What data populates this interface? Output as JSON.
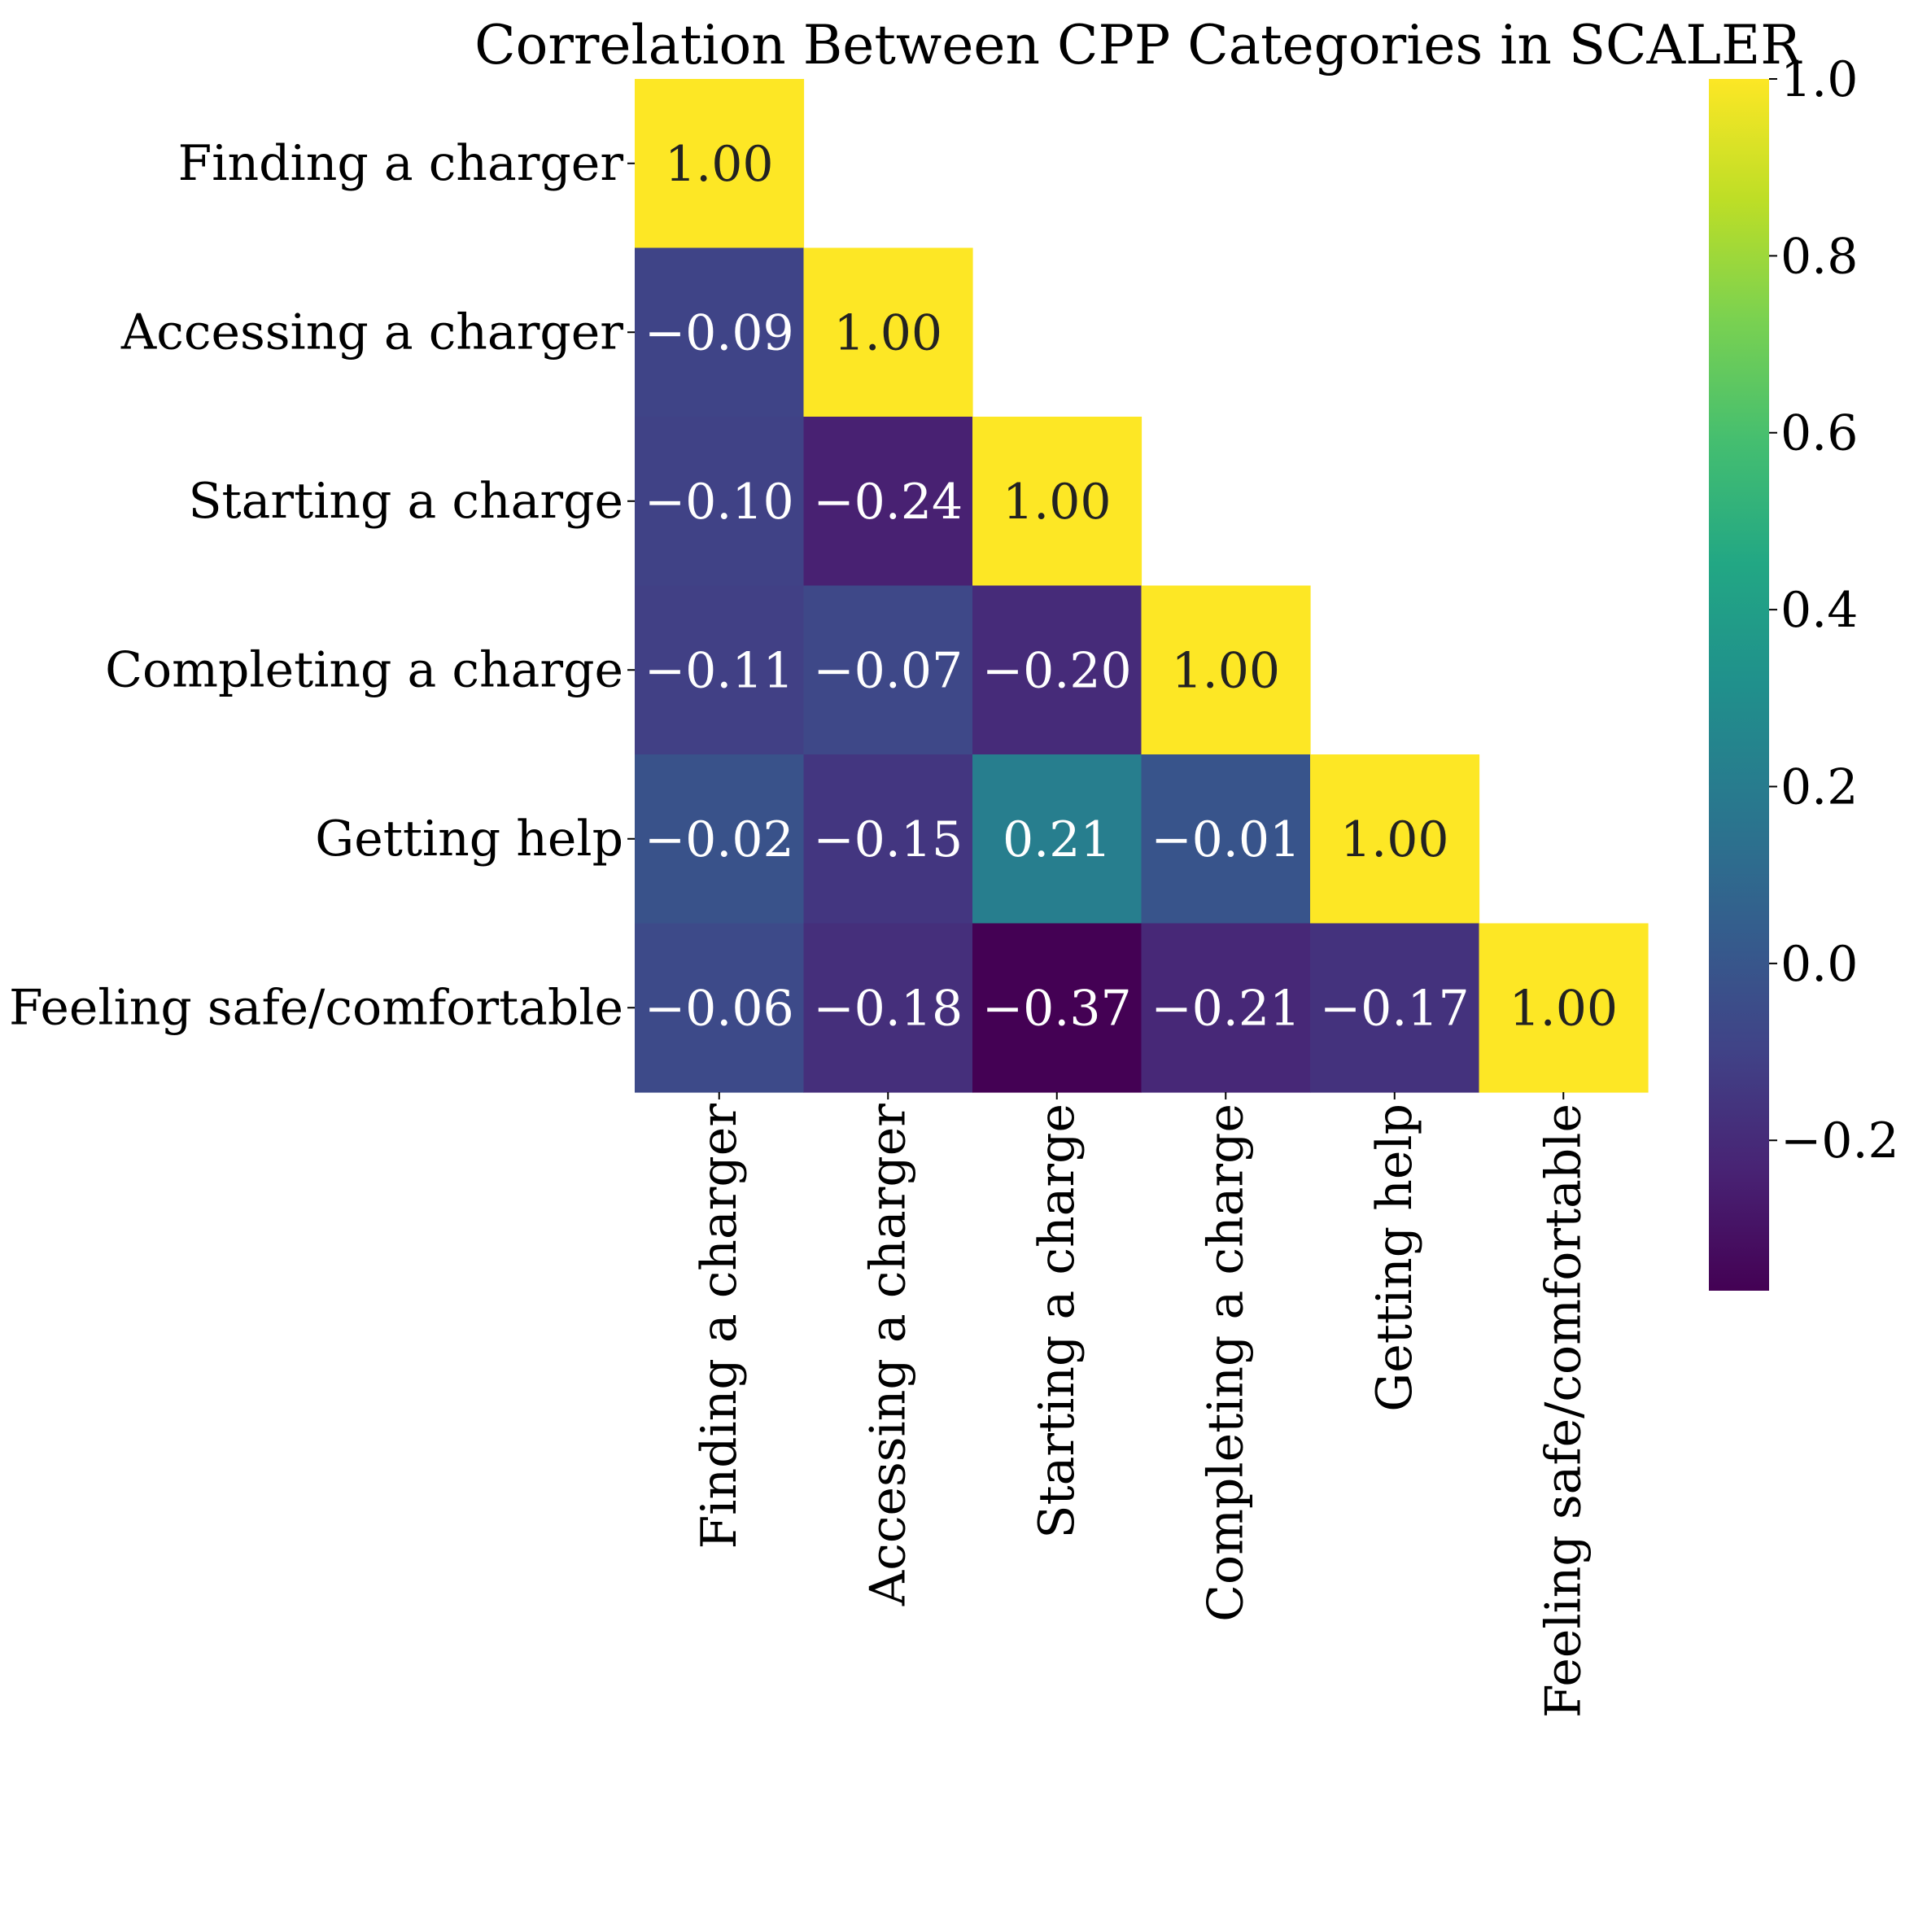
{
  "chart_data": {
    "type": "heatmap",
    "title": "Correlation Between CPP Categories in SCALER",
    "categories": [
      "Finding a charger",
      "Accessing a charger",
      "Starting a charge",
      "Completing a charge",
      "Getting help",
      "Feeling safe/comfortable"
    ],
    "mask": "upper-triangle",
    "values": [
      [
        1.0,
        null,
        null,
        null,
        null,
        null
      ],
      [
        -0.09,
        1.0,
        null,
        null,
        null,
        null
      ],
      [
        -0.1,
        -0.24,
        1.0,
        null,
        null,
        null
      ],
      [
        -0.11,
        -0.07,
        -0.2,
        1.0,
        null,
        null
      ],
      [
        -0.02,
        -0.15,
        0.21,
        -0.01,
        1.0,
        null
      ],
      [
        -0.06,
        -0.18,
        -0.37,
        -0.21,
        -0.17,
        1.0
      ]
    ],
    "colormap": "viridis",
    "colorbar": {
      "vmin": -0.37,
      "vmax": 1.0,
      "ticks": [
        -0.2,
        0.0,
        0.2,
        0.4,
        0.6,
        0.8,
        1.0
      ],
      "tick_labels": [
        "−0.2",
        "0.0",
        "0.2",
        "0.4",
        "0.6",
        "0.8",
        "1.0"
      ]
    },
    "annotation_format": "0.00"
  }
}
